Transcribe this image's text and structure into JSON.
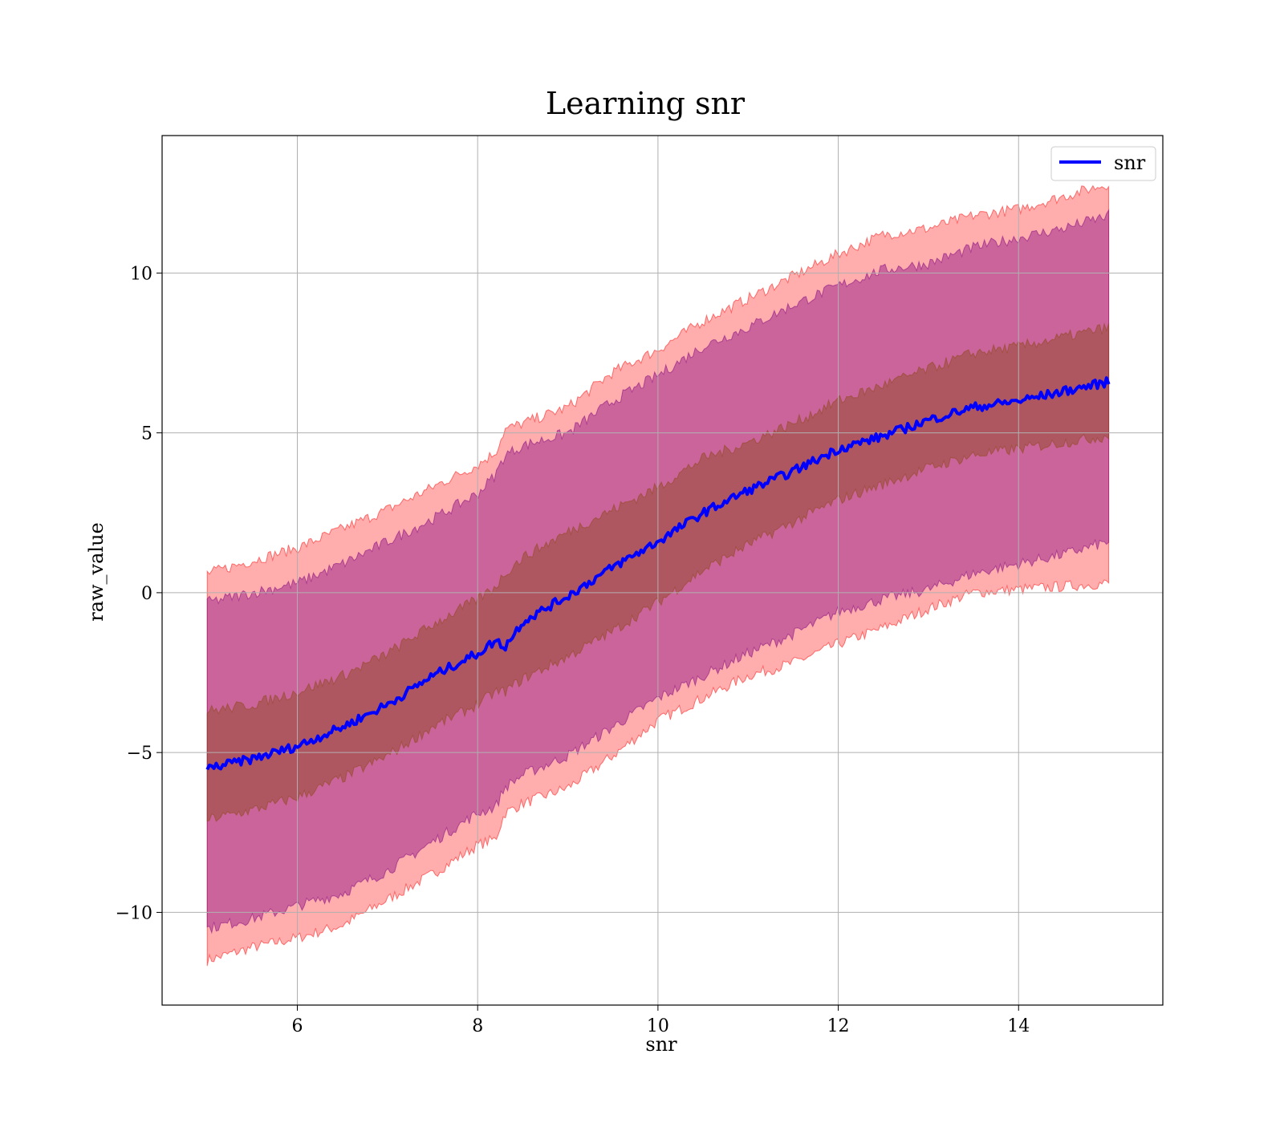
{
  "chart_data": {
    "type": "line",
    "title": "Learning snr",
    "xlabel": "snr",
    "ylabel": "raw_value",
    "xlim": [
      4.5,
      15.6
    ],
    "ylim": [
      -12.9,
      14.3
    ],
    "xticks": [
      6,
      8,
      10,
      12,
      14
    ],
    "xtick_labels": [
      "6",
      "8",
      "10",
      "12",
      "14"
    ],
    "yticks": [
      -10,
      -5,
      0,
      5,
      10
    ],
    "ytick_labels": [
      "−10",
      "−5",
      "0",
      "5",
      "10"
    ],
    "grid": true,
    "legend_position": "top-right",
    "legend": [
      "snr"
    ],
    "colors": {
      "line": "#0000ff",
      "outer_band": "#ff0000",
      "middle_band": "#800080",
      "inner_band": "#8b4513"
    },
    "series": [
      {
        "name": "snr",
        "x": [
          5.0,
          5.5,
          6.0,
          6.5,
          7.0,
          7.5,
          8.0,
          8.2,
          8.3,
          8.5,
          9.0,
          9.5,
          10.0,
          10.5,
          11.0,
          11.5,
          12.0,
          12.5,
          13.0,
          13.5,
          14.0,
          14.5,
          15.0
        ],
        "y": [
          -5.5,
          -5.2,
          -4.8,
          -4.2,
          -3.5,
          -2.6,
          -1.9,
          -1.5,
          -1.7,
          -0.9,
          -0.1,
          0.8,
          1.6,
          2.5,
          3.2,
          3.8,
          4.5,
          4.9,
          5.4,
          5.8,
          6.0,
          6.3,
          6.6
        ]
      }
    ],
    "bands": [
      {
        "level": "outer",
        "lower": [
          -11.5,
          -11.1,
          -10.8,
          -10.4,
          -9.6,
          -8.8,
          -7.9,
          -7.7,
          -6.9,
          -6.6,
          -6.1,
          -5.1,
          -4.0,
          -3.3,
          -2.6,
          -2.2,
          -1.6,
          -1.1,
          -0.5,
          0.0,
          0.1,
          0.2,
          0.3
        ],
        "upper": [
          0.6,
          1.0,
          1.4,
          2.0,
          2.6,
          3.3,
          4.0,
          4.4,
          5.1,
          5.3,
          5.8,
          6.9,
          7.6,
          8.5,
          9.2,
          9.9,
          10.6,
          11.2,
          11.4,
          11.8,
          12.0,
          12.4,
          12.8
        ]
      },
      {
        "level": "middle",
        "lower": [
          -10.5,
          -10.2,
          -9.8,
          -9.4,
          -8.7,
          -7.8,
          -6.9,
          -6.7,
          -6.1,
          -5.7,
          -5.1,
          -4.2,
          -3.3,
          -2.6,
          -1.9,
          -1.3,
          -0.6,
          -0.2,
          0.1,
          0.6,
          0.9,
          1.2,
          1.6
        ],
        "upper": [
          -0.3,
          0.0,
          0.3,
          0.9,
          1.6,
          2.3,
          3.1,
          3.7,
          4.3,
          4.6,
          5.0,
          6.0,
          6.8,
          7.7,
          8.3,
          9.0,
          9.6,
          10.1,
          10.3,
          10.8,
          11.1,
          11.4,
          11.8
        ]
      },
      {
        "level": "inner",
        "lower": [
          -7.1,
          -6.8,
          -6.4,
          -5.8,
          -5.1,
          -4.2,
          -3.5,
          -3.1,
          -3.1,
          -2.7,
          -2.0,
          -1.2,
          -0.3,
          0.7,
          1.5,
          2.2,
          2.9,
          3.4,
          3.9,
          4.3,
          4.5,
          4.7,
          4.9
        ],
        "upper": [
          -3.7,
          -3.5,
          -3.1,
          -2.6,
          -1.9,
          -1.0,
          -0.2,
          0.2,
          0.6,
          1.1,
          1.9,
          2.6,
          3.3,
          4.2,
          4.7,
          5.3,
          6.0,
          6.5,
          7.0,
          7.5,
          7.7,
          8.0,
          8.3
        ]
      }
    ]
  }
}
